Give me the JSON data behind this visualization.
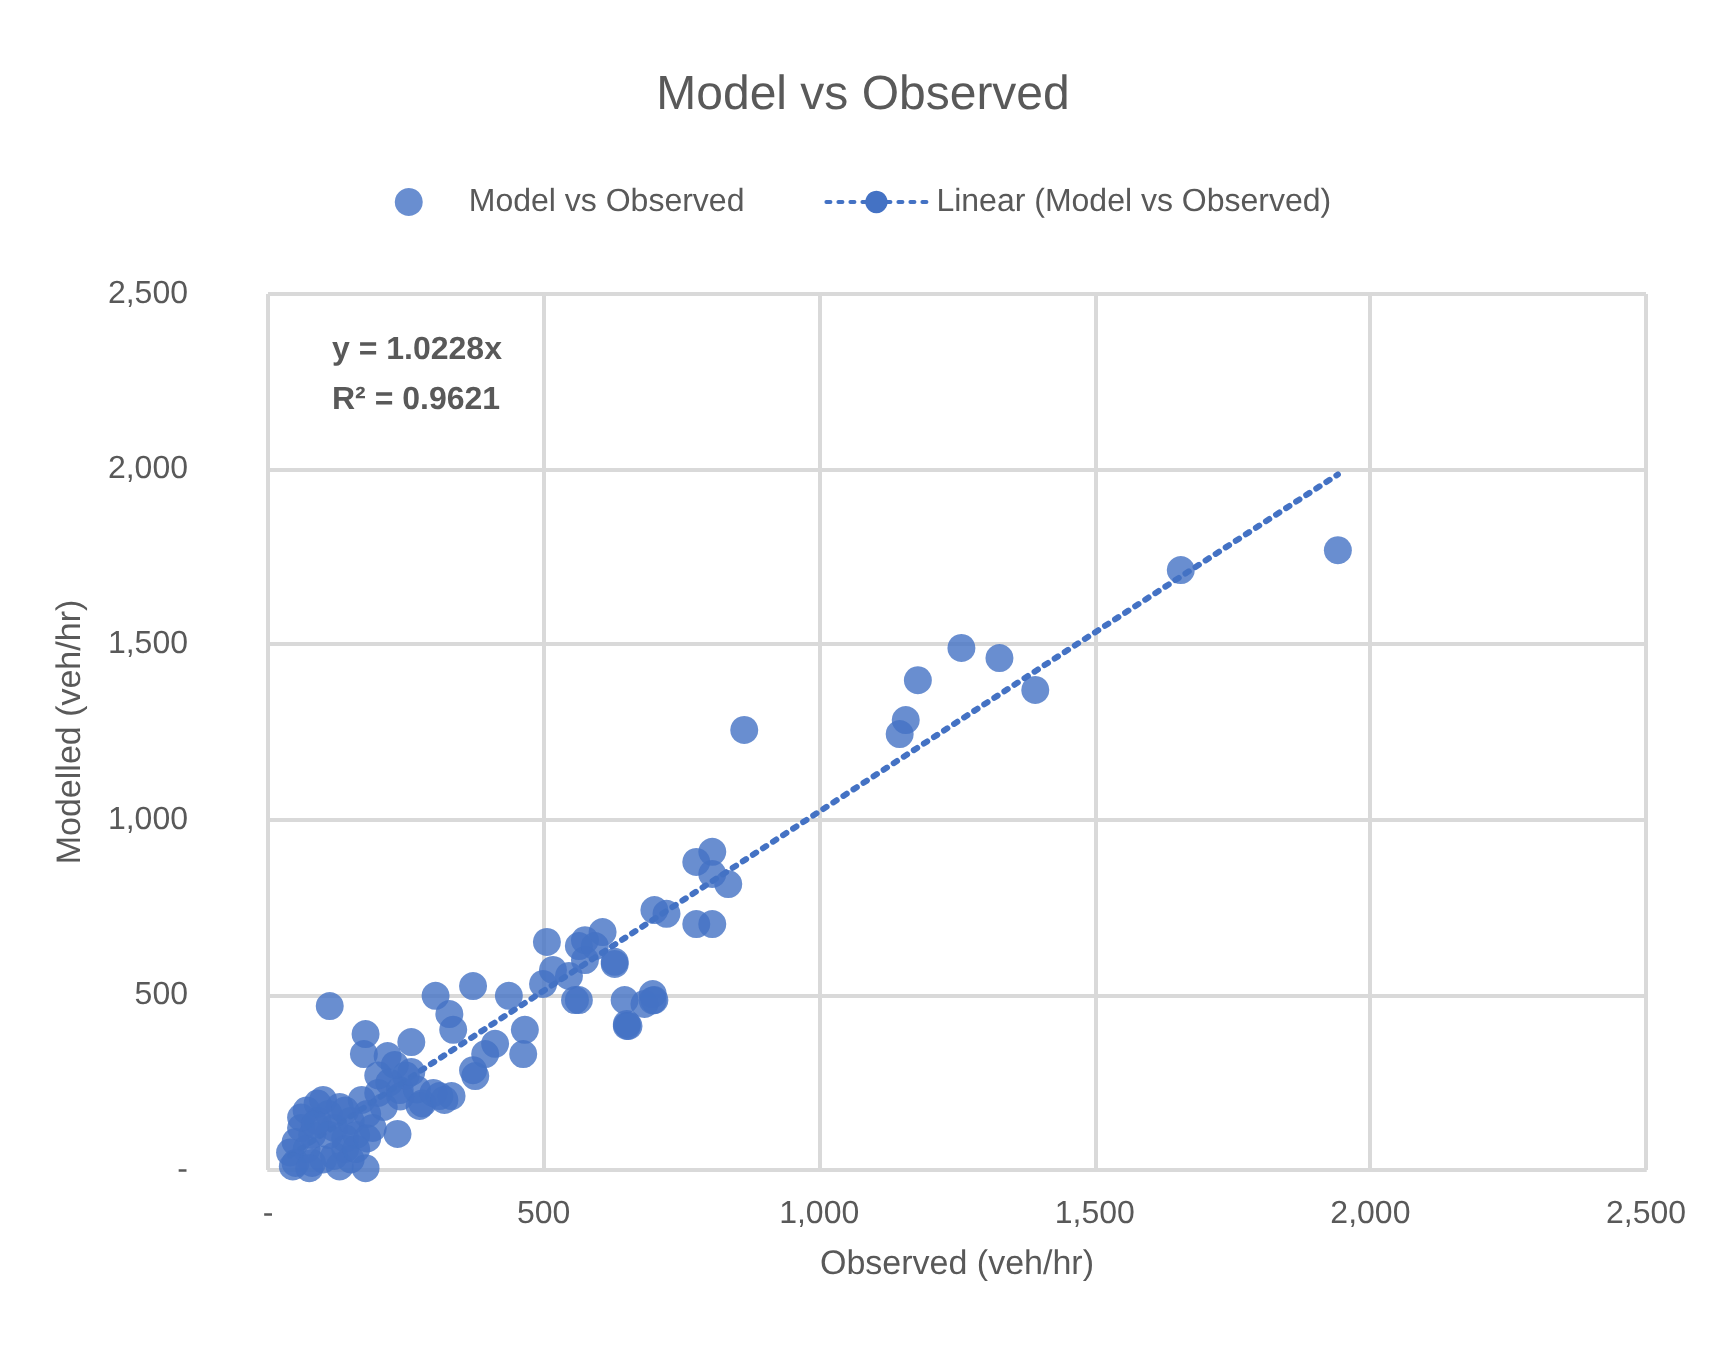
{
  "chart_data": {
    "type": "scatter",
    "title": "Model vs Observed",
    "xlabel": "Observed (veh/hr)",
    "ylabel": "Modelled (veh/hr)",
    "annotations": [
      "y = 1.0228x",
      "R² = 0.9621"
    ],
    "series": [
      {
        "name": "Model vs Observed",
        "color": "#4472c4",
        "marker": "circle",
        "x": [
          1941,
          1656,
          1392,
          1327,
          1258,
          1179,
          1157,
          1146,
          864,
          806,
          777,
          806,
          835,
          701,
          723,
          607,
          575,
          564,
          629,
          575,
          546,
          557,
          647,
          698,
          683,
          651,
          112,
          506,
          304,
          372,
          437,
          329,
          336,
          466,
          463,
          412,
          394,
          376,
          372,
          177,
          174,
          260,
          217,
          239,
          311,
          333,
          275,
          235,
          177,
          499,
          517,
          564,
          593,
          629,
          651,
          654,
          701,
          698,
          777,
          806,
          50,
          70,
          80,
          90,
          110,
          120,
          130,
          140,
          150,
          160,
          170,
          180,
          60,
          80,
          100,
          120,
          140,
          70,
          90,
          150,
          200,
          190,
          210,
          220,
          240,
          250,
          270,
          280,
          300,
          320,
          260,
          230,
          200,
          50,
          40,
          130,
          100,
          60,
          110,
          85,
          140,
          160,
          180,
          45,
          75
        ],
        "values": [
          1769,
          1712,
          1370,
          1461,
          1490,
          1398,
          1284,
          1244,
          1256,
          908,
          879,
          845,
          816,
          742,
          731,
          679,
          656,
          639,
          594,
          599,
          554,
          485,
          485,
          502,
          474,
          417,
          468,
          651,
          497,
          525,
          497,
          445,
          400,
          400,
          331,
          360,
          331,
          268,
          285,
          388,
          331,
          365,
          325,
          228,
          211,
          211,
          183,
          103,
          5,
          531,
          571,
          485,
          639,
          588,
          411,
          411,
          485,
          484,
          702,
          702,
          20,
          60,
          100,
          140,
          160,
          120,
          180,
          60,
          140,
          100,
          200,
          160,
          120,
          20,
          30,
          40,
          90,
          170,
          190,
          30,
          220,
          120,
          180,
          250,
          210,
          270,
          230,
          190,
          220,
          200,
          280,
          300,
          270,
          80,
          50,
          10,
          200,
          150,
          100,
          130,
          170,
          60,
          90,
          10,
          5
        ]
      },
      {
        "name": "Linear (Model vs Observed)",
        "type": "line",
        "color": "#4472c4",
        "line_style": "dotted",
        "marker": "none",
        "x": [
          40,
          1941
        ],
        "values": [
          41,
          1985
        ]
      }
    ],
    "xlim": [
      0,
      2500
    ],
    "ylim": [
      0,
      2500
    ],
    "xticks": [
      {
        "value": 0,
        "label": "-"
      },
      {
        "value": 500,
        "label": "500"
      },
      {
        "value": 1000,
        "label": "1,000"
      },
      {
        "value": 1500,
        "label": "1,500"
      },
      {
        "value": 2000,
        "label": "2,000"
      },
      {
        "value": 2500,
        "label": "2,500"
      }
    ],
    "yticks": [
      {
        "value": 0,
        "label": "-"
      },
      {
        "value": 500,
        "label": "500"
      },
      {
        "value": 1000,
        "label": "1,000"
      },
      {
        "value": 1500,
        "label": "1,500"
      },
      {
        "value": 2000,
        "label": "2,000"
      },
      {
        "value": 2500,
        "label": "2,500"
      }
    ],
    "grid": true,
    "legend": "top"
  }
}
